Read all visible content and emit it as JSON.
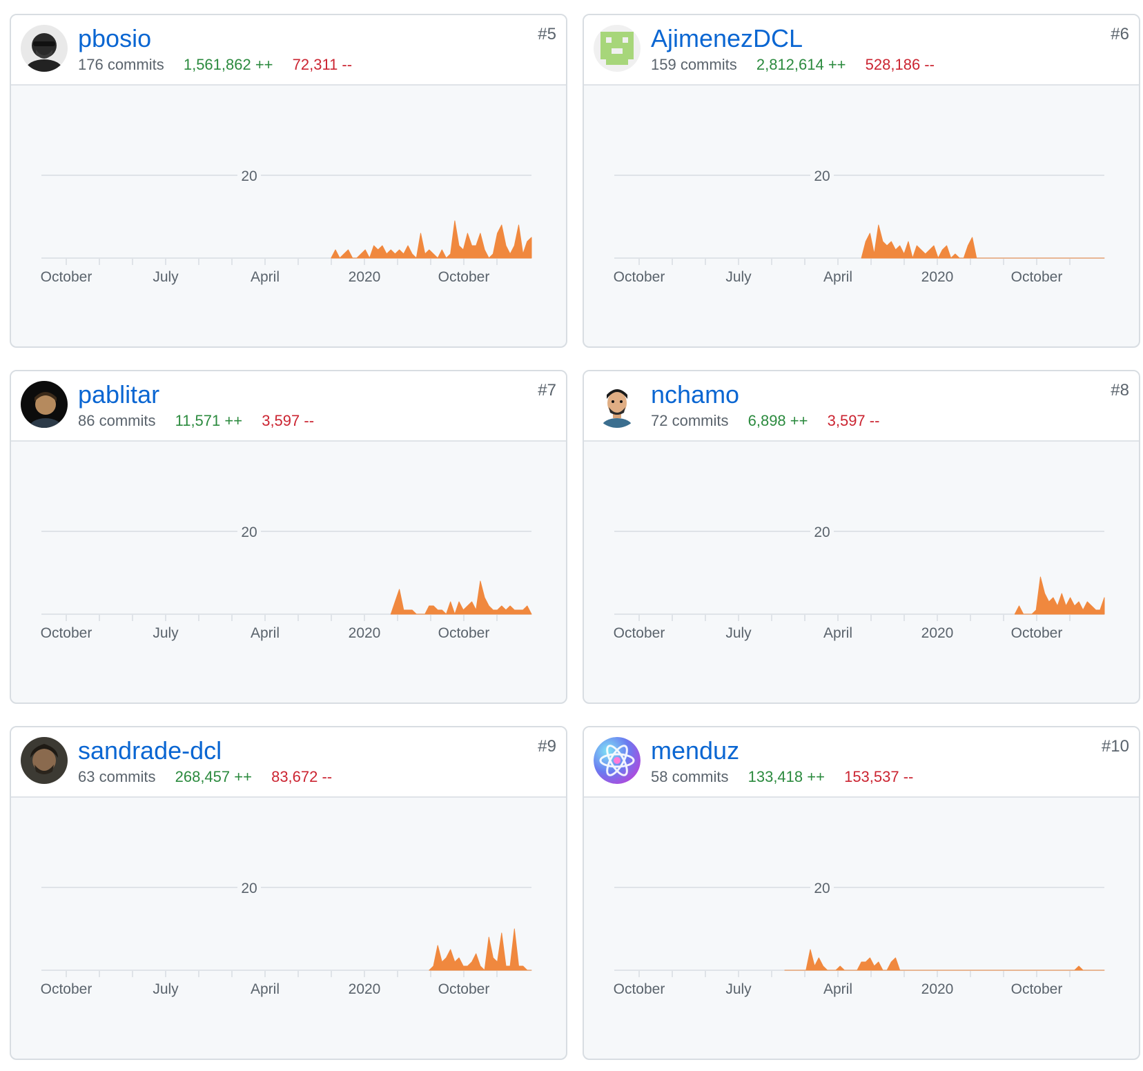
{
  "colors": {
    "link": "#0a66d2",
    "additions": "#2b8a3e",
    "deletions": "#cb2431",
    "area": "#f0883e",
    "grid": "#dfe3e8",
    "axis_text": "#5a636c"
  },
  "cards": [
    {
      "username": "pbosio",
      "commits": "176 commits",
      "additions": "1,561,862 ++",
      "deletions": "72,311 --",
      "rank": "#5",
      "avatar_icon": "user-avatar-photo-icon"
    },
    {
      "username": "AjimenezDCL",
      "commits": "159 commits",
      "additions": "2,812,614 ++",
      "deletions": "528,186 --",
      "rank": "#6",
      "avatar_icon": "identicon-avatar-icon"
    },
    {
      "username": "pablitar",
      "commits": "86 commits",
      "additions": "11,571 ++",
      "deletions": "3,597 --",
      "rank": "#7",
      "avatar_icon": "user-avatar-photo-icon"
    },
    {
      "username": "nchamo",
      "commits": "72 commits",
      "additions": "6,898 ++",
      "deletions": "3,597 --",
      "rank": "#8",
      "avatar_icon": "cartoon-avatar-icon"
    },
    {
      "username": "sandrade-dcl",
      "commits": "63 commits",
      "additions": "268,457 ++",
      "deletions": "83,672 --",
      "rank": "#9",
      "avatar_icon": "user-avatar-photo-icon"
    },
    {
      "username": "menduz",
      "commits": "58 commits",
      "additions": "133,418 ++",
      "deletions": "153,537 --",
      "rank": "#10",
      "avatar_icon": "atom-avatar-icon"
    }
  ],
  "chart_data": [
    {
      "type": "area",
      "x_tick_labels": [
        "October",
        "July",
        "April",
        "2020",
        "October"
      ],
      "y_tick_labels": [
        "20"
      ],
      "ylim": [
        0,
        40
      ],
      "x_range_weeks": [
        0,
        115
      ],
      "series": [
        {
          "x": [
            68,
            69,
            70,
            71,
            72,
            73,
            74,
            75,
            76,
            77,
            78,
            79,
            80,
            81,
            82,
            83,
            84,
            85,
            86,
            87,
            88,
            89,
            90,
            91,
            92,
            93,
            94,
            95,
            96,
            97,
            98,
            99,
            100,
            101,
            102,
            103,
            104,
            105,
            106,
            107,
            108,
            109,
            110,
            111,
            112,
            113,
            114,
            115
          ],
          "values": [
            0,
            2,
            0,
            1,
            2,
            0,
            0,
            1,
            2,
            0,
            3,
            2,
            3,
            1,
            2,
            1,
            2,
            1,
            3,
            1,
            0,
            6,
            1,
            2,
            1,
            0,
            2,
            0,
            1,
            9,
            3,
            2,
            6,
            3,
            3,
            6,
            2,
            0,
            1,
            6,
            8,
            3,
            1,
            3,
            8,
            1,
            4,
            5
          ]
        }
      ]
    },
    {
      "type": "area",
      "x_tick_labels": [
        "October",
        "July",
        "April",
        "2020",
        "October"
      ],
      "y_tick_labels": [
        "20"
      ],
      "ylim": [
        0,
        40
      ],
      "x_range_weeks": [
        0,
        115
      ],
      "series": [
        {
          "x": [
            58,
            59,
            60,
            61,
            62,
            63,
            64,
            65,
            66,
            67,
            68,
            69,
            70,
            71,
            72,
            73,
            74,
            75,
            76,
            77,
            78,
            79,
            80,
            81,
            82,
            83,
            84,
            85,
            86,
            87,
            88,
            89,
            90,
            91,
            92,
            93,
            94,
            95,
            96,
            97,
            98,
            99,
            100,
            101,
            102,
            103,
            104,
            105,
            106,
            107,
            108,
            109,
            110,
            111,
            112,
            113,
            114,
            115
          ],
          "values": [
            0,
            4,
            6,
            1,
            8,
            4,
            3,
            4,
            2,
            3,
            1,
            4,
            0,
            3,
            2,
            1,
            2,
            3,
            0,
            2,
            3,
            0,
            1,
            0,
            0,
            3,
            5,
            0,
            0,
            0,
            0,
            0,
            0,
            0,
            0,
            0,
            0,
            0,
            0,
            0,
            0,
            0,
            0,
            0,
            0,
            0,
            0,
            0,
            0,
            0,
            0,
            0,
            0,
            0,
            0,
            0,
            0,
            0
          ]
        }
      ]
    },
    {
      "type": "area",
      "x_tick_labels": [
        "October",
        "July",
        "April",
        "2020",
        "October"
      ],
      "y_tick_labels": [
        "20"
      ],
      "ylim": [
        0,
        40
      ],
      "x_range_weeks": [
        0,
        115
      ],
      "series": [
        {
          "x": [
            82,
            83,
            84,
            85,
            86,
            87,
            88,
            89,
            90,
            91,
            92,
            93,
            94,
            95,
            96,
            97,
            98,
            99,
            100,
            101,
            102,
            103,
            104,
            105,
            106,
            107,
            108,
            109,
            110,
            111,
            112,
            113,
            114,
            115
          ],
          "values": [
            0,
            3,
            6,
            1,
            1,
            1,
            0,
            0,
            0,
            2,
            2,
            1,
            1,
            0,
            3,
            0,
            3,
            1,
            2,
            3,
            1,
            8,
            4,
            2,
            1,
            1,
            2,
            1,
            2,
            1,
            1,
            1,
            2,
            0
          ]
        }
      ]
    },
    {
      "type": "area",
      "x_tick_labels": [
        "October",
        "July",
        "April",
        "2020",
        "October"
      ],
      "y_tick_labels": [
        "20"
      ],
      "ylim": [
        0,
        40
      ],
      "x_range_weeks": [
        0,
        115
      ],
      "series": [
        {
          "x": [
            94,
            95,
            96,
            97,
            98,
            99,
            100,
            101,
            102,
            103,
            104,
            105,
            106,
            107,
            108,
            109,
            110,
            111,
            112,
            113,
            114,
            115
          ],
          "values": [
            0,
            2,
            0,
            0,
            0,
            1,
            9,
            5,
            3,
            4,
            2,
            5,
            2,
            4,
            2,
            3,
            1,
            3,
            2,
            1,
            1,
            4
          ]
        }
      ]
    },
    {
      "type": "area",
      "x_tick_labels": [
        "October",
        "July",
        "April",
        "2020",
        "October"
      ],
      "y_tick_labels": [
        "20"
      ],
      "ylim": [
        0,
        40
      ],
      "x_range_weeks": [
        0,
        115
      ],
      "series": [
        {
          "x": [
            91,
            92,
            93,
            94,
            95,
            96,
            97,
            98,
            99,
            100,
            101,
            102,
            103,
            104,
            105,
            106,
            107,
            108,
            109,
            110,
            111,
            112,
            113,
            114,
            115
          ],
          "values": [
            0,
            1,
            6,
            2,
            3,
            5,
            2,
            3,
            1,
            1,
            2,
            4,
            1,
            0,
            8,
            3,
            2,
            9,
            1,
            1,
            10,
            1,
            1,
            0,
            0
          ]
        }
      ]
    },
    {
      "type": "area",
      "x_tick_labels": [
        "October",
        "July",
        "April",
        "2020",
        "October"
      ],
      "y_tick_labels": [
        "20"
      ],
      "ylim": [
        0,
        40
      ],
      "x_range_weeks": [
        0,
        115
      ],
      "series": [
        {
          "x": [
            40,
            41,
            42,
            43,
            44,
            45,
            46,
            47,
            48,
            49,
            50,
            51,
            52,
            53,
            54,
            55,
            56,
            57,
            58,
            59,
            60,
            61,
            62,
            63,
            64,
            65,
            66,
            67,
            68,
            69,
            70,
            71,
            72,
            73,
            74,
            75,
            76,
            77,
            78,
            79,
            80,
            81,
            82,
            83,
            84,
            85,
            86,
            87,
            88,
            89,
            90,
            91,
            92,
            93,
            94,
            95,
            96,
            97,
            98,
            99,
            100,
            101,
            102,
            103,
            104,
            105,
            106,
            107,
            108,
            109,
            110,
            111,
            112,
            113,
            114,
            115
          ],
          "values": [
            0,
            0,
            0,
            0,
            0,
            0,
            5,
            1,
            3,
            1,
            0,
            0,
            0,
            1,
            0,
            0,
            0,
            0,
            2,
            2,
            3,
            1,
            2,
            0,
            0,
            2,
            3,
            0,
            0,
            0,
            0,
            0,
            0,
            0,
            0,
            0,
            0,
            0,
            0,
            0,
            0,
            0,
            0,
            0,
            0,
            0,
            0,
            0,
            0,
            0,
            0,
            0,
            0,
            0,
            0,
            0,
            0,
            0,
            0,
            0,
            0,
            0,
            0,
            0,
            0,
            0,
            0,
            0,
            0,
            1,
            0,
            0,
            0,
            0,
            0,
            0
          ]
        }
      ]
    }
  ]
}
